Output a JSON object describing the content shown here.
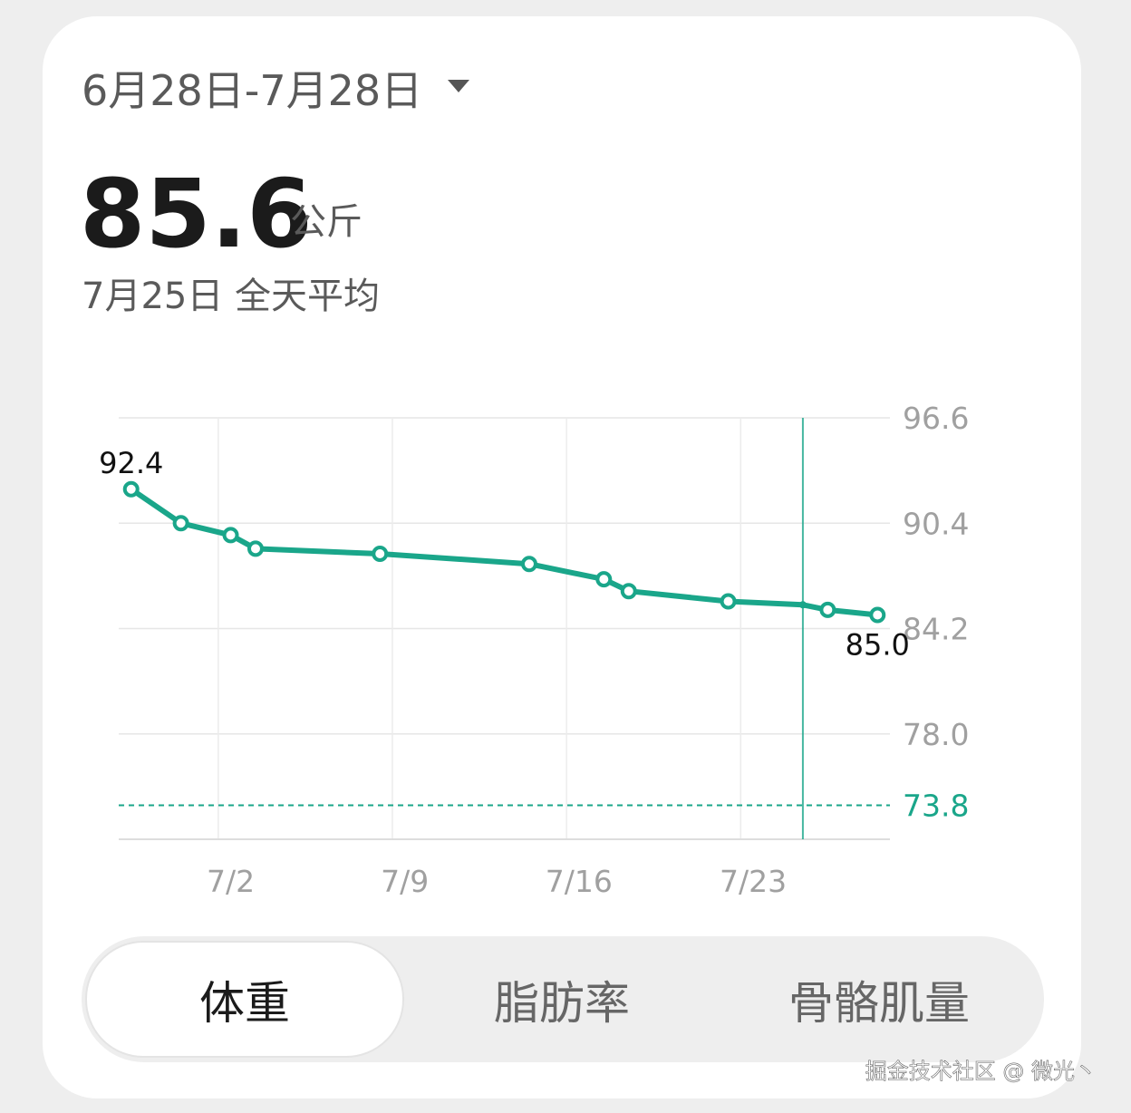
{
  "header": {
    "date_range": "6月28日-7月28日",
    "value": "85.6",
    "unit": "公斤",
    "subtitle": "7月25日 全天平均"
  },
  "chart_data": {
    "type": "line",
    "x": [
      "6/28",
      "6/30",
      "7/2",
      "7/3",
      "7/8",
      "7/14",
      "7/17",
      "7/18",
      "7/22",
      "7/25",
      "7/26",
      "7/28"
    ],
    "values": [
      92.4,
      90.4,
      89.7,
      88.9,
      88.6,
      88.0,
      87.1,
      86.4,
      85.8,
      85.6,
      85.3,
      85.0
    ],
    "value_labels": [
      "92.4",
      null,
      null,
      null,
      null,
      null,
      null,
      null,
      null,
      null,
      null,
      "85.0"
    ],
    "color": "#1aa68a",
    "xlim": [
      "6/28",
      "7/28"
    ],
    "xticks": [
      "7/2",
      "7/9",
      "7/16",
      "7/23"
    ],
    "ylim": [
      71.8,
      96.6
    ],
    "yticks": [
      {
        "value": 78,
        "label": "78.0"
      },
      {
        "value": 84.2,
        "label": "84.2"
      },
      {
        "value": 90.4,
        "label": "90.4"
      },
      {
        "value": 96.6,
        "label": "96.6"
      }
    ],
    "reference_line": 73.8,
    "cursor_x": "7/25",
    "grid": true
  },
  "tabs": {
    "items": [
      "体重",
      "脂肪率",
      "骨骼肌量"
    ],
    "active": 0
  },
  "watermark": "掘金技术社区 @ 微光丶"
}
